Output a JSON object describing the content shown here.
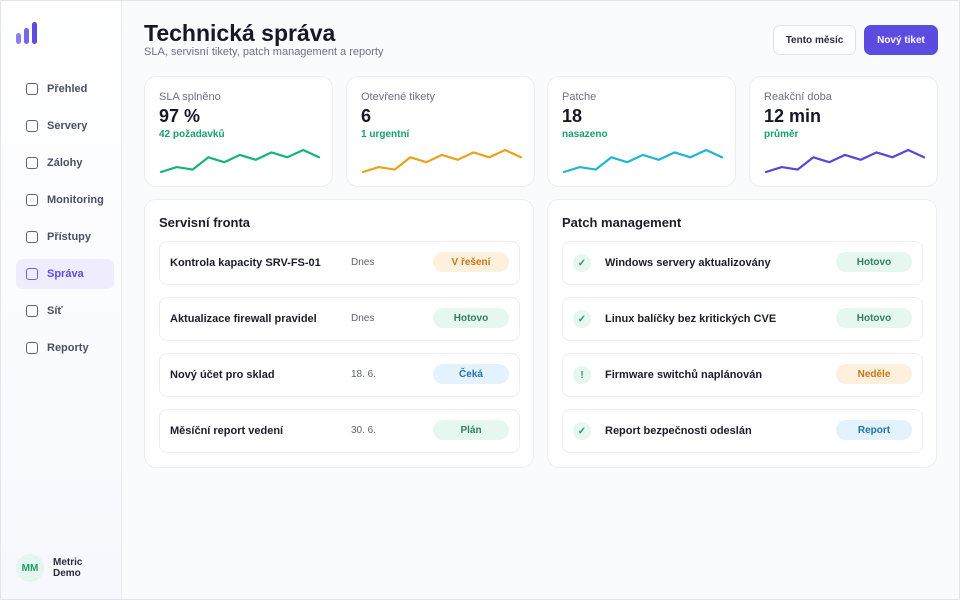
{
  "brand": {
    "colors": {
      "accent": "#5b4be0",
      "success": "#16a06f",
      "warning": "#e0a31c",
      "info": "#22b2d6"
    }
  },
  "sidebar": {
    "items": [
      {
        "label": "Přehled",
        "icon": "square-icon",
        "active": false
      },
      {
        "label": "Servery",
        "icon": "square-icon",
        "active": false
      },
      {
        "label": "Zálohy",
        "icon": "square-icon",
        "active": false
      },
      {
        "label": "Monitoring",
        "icon": "square-icon",
        "active": false
      },
      {
        "label": "Přístupy",
        "icon": "square-icon",
        "active": false
      },
      {
        "label": "Správa",
        "icon": "square-icon",
        "active": true
      },
      {
        "label": "Síť",
        "icon": "square-icon",
        "active": false
      },
      {
        "label": "Reporty",
        "icon": "square-icon",
        "active": false
      }
    ],
    "user": {
      "initials": "MM",
      "name": "Metric Demo"
    }
  },
  "header": {
    "title": "Technická správa",
    "subtitle": "SLA, servisní tikety, patch management a reporty",
    "filter_button": "Tento měsíc",
    "primary_button": "Nový tiket"
  },
  "kpis": [
    {
      "label": "SLA splněno",
      "value": "97 %",
      "note": "42 požadavků",
      "color": "#16b37f",
      "trend": [
        3,
        5,
        4,
        9,
        7,
        10,
        8,
        11,
        9,
        12,
        9
      ]
    },
    {
      "label": "Otevřené tikety",
      "value": "6",
      "note": "1 urgentní",
      "color": "#e9a21b",
      "trend": [
        3,
        5,
        4,
        9,
        7,
        10,
        8,
        11,
        9,
        12,
        9
      ]
    },
    {
      "label": "Patche",
      "value": "18",
      "note": "nasazeno",
      "color": "#22b4d4",
      "trend": [
        3,
        5,
        4,
        9,
        7,
        10,
        8,
        11,
        9,
        12,
        9
      ]
    },
    {
      "label": "Reakční doba",
      "value": "12 min",
      "note": "průměr",
      "color": "#5b44d8",
      "trend": [
        3,
        5,
        4,
        9,
        7,
        10,
        8,
        11,
        9,
        12,
        9
      ]
    }
  ],
  "service_queue": {
    "title": "Servisní fronta",
    "rows": [
      {
        "title": "Kontrola kapacity SRV-FS-01",
        "date": "Dnes",
        "status": "V řešení",
        "tone": "orange"
      },
      {
        "title": "Aktualizace firewall pravidel",
        "date": "Dnes",
        "status": "Hotovo",
        "tone": "green"
      },
      {
        "title": "Nový účet pro sklad",
        "date": "18. 6.",
        "status": "Čeká",
        "tone": "blue"
      },
      {
        "title": "Měsíční report vedení",
        "date": "30. 6.",
        "status": "Plán",
        "tone": "green"
      }
    ]
  },
  "patch_management": {
    "title": "Patch management",
    "rows": [
      {
        "icon": "✓",
        "title": "Windows servery aktualizovány",
        "status": "Hotovo",
        "tone": "green"
      },
      {
        "icon": "✓",
        "title": "Linux balíčky bez kritických CVE",
        "status": "Hotovo",
        "tone": "green"
      },
      {
        "icon": "!",
        "title": "Firmware switchů naplánován",
        "status": "Neděle",
        "tone": "orange"
      },
      {
        "icon": "✓",
        "title": "Report bezpečnosti odeslán",
        "status": "Report",
        "tone": "blue"
      }
    ]
  }
}
